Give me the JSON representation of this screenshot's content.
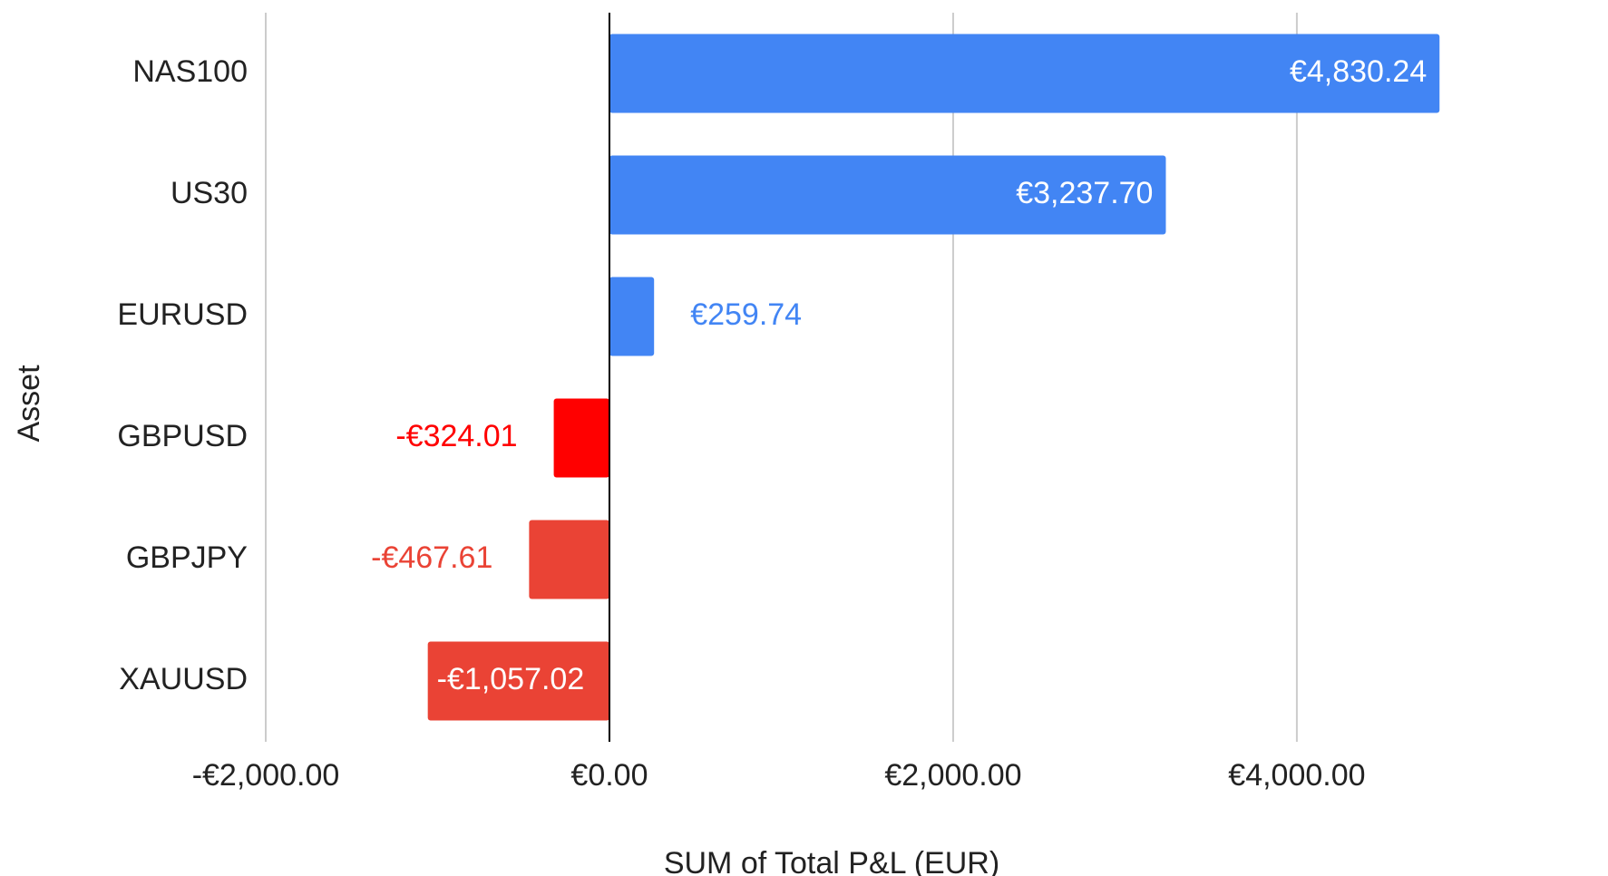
{
  "chart_data": {
    "type": "bar",
    "orientation": "horizontal",
    "categories": [
      "NAS100",
      "US30",
      "EURUSD",
      "GBPUSD",
      "GBPJPY",
      "XAUUSD"
    ],
    "values": [
      4830.24,
      3237.7,
      259.74,
      -324.01,
      -467.61,
      -1057.02
    ],
    "value_labels": [
      "€4,830.24",
      "€3,237.70",
      "€259.74",
      "-€324.01",
      "-€467.61",
      "-€1,057.02"
    ],
    "colors": [
      "#4285f4",
      "#4285f4",
      "#4285f4",
      "#ff0000",
      "#ea4335",
      "#ea4335"
    ],
    "xlim": [
      -2000,
      5800
    ],
    "xticks": [
      {
        "value": -2000,
        "label": "-€2,000.00"
      },
      {
        "value": 0,
        "label": "€0.00"
      },
      {
        "value": 2000,
        "label": "€2,000.00"
      },
      {
        "value": 4000,
        "label": "€4,000.00"
      }
    ],
    "xlabel": "SUM of Total P&L (EUR)",
    "ylabel": "Asset",
    "grid": true
  }
}
